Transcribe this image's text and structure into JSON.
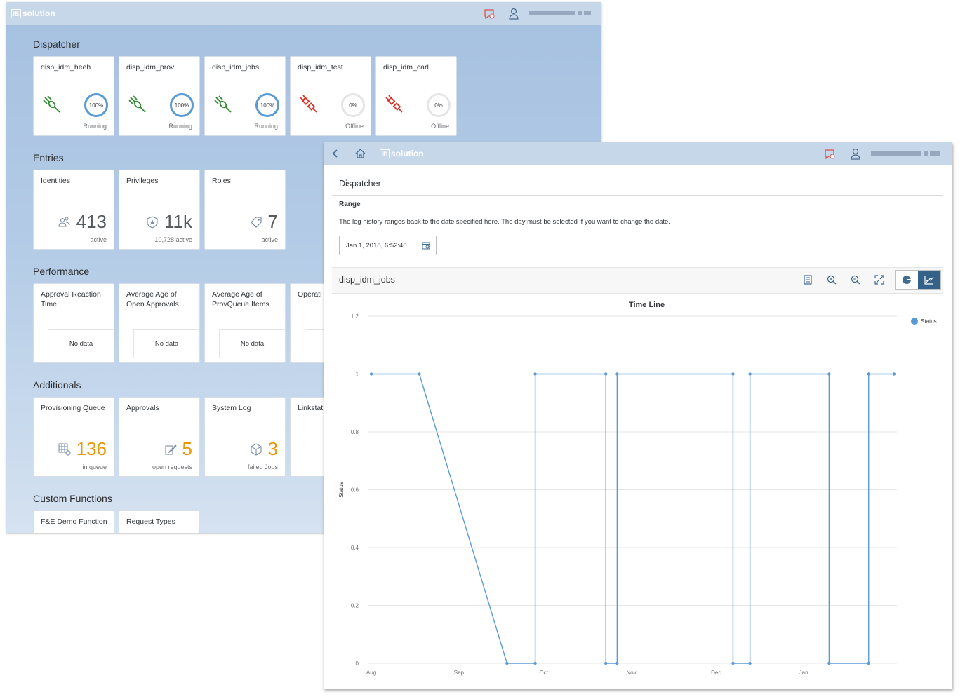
{
  "background_window": {
    "logo_text": "solution",
    "logo_mark": "IB",
    "groups": [
      {
        "title": "Dispatcher"
      },
      {
        "title": "Entries"
      },
      {
        "title": "Performance"
      },
      {
        "title": "Additionals"
      },
      {
        "title": "Custom Functions"
      }
    ],
    "dispatchers": [
      {
        "name": "disp_idm_heeh",
        "percent": "100%",
        "status": "Running",
        "state": "on"
      },
      {
        "name": "disp_idm_prov",
        "percent": "100%",
        "status": "Running",
        "state": "on"
      },
      {
        "name": "disp_idm_jobs",
        "percent": "100%",
        "status": "Running",
        "state": "on"
      },
      {
        "name": "disp_idm_test",
        "percent": "0%",
        "status": "Offline",
        "state": "off"
      },
      {
        "name": "disp_idm_carl",
        "percent": "0%",
        "status": "Offline",
        "state": "off"
      }
    ],
    "entries": [
      {
        "title": "Identities",
        "value": "413",
        "footer": "active",
        "icon": "people-icon"
      },
      {
        "title": "Privileges",
        "value": "11k",
        "footer": "10,728 active",
        "icon": "badge-icon"
      },
      {
        "title": "Roles",
        "value": "7",
        "footer": "active",
        "icon": "tag-icon"
      }
    ],
    "performance": [
      {
        "title": "Approval Reaction Time",
        "nodata": "No data"
      },
      {
        "title": "Average Age of Open Approvals",
        "nodata": "No data"
      },
      {
        "title": "Average Age of ProvQueue Items",
        "nodata": "No data"
      },
      {
        "title": "Operati",
        "nodata": ""
      }
    ],
    "additionals": [
      {
        "title": "Provisioning Queue",
        "value": "136",
        "footer": "in queue",
        "icon": "grid-gear-icon"
      },
      {
        "title": "Approvals",
        "value": "5",
        "footer": "open requests",
        "icon": "edit-doc-icon"
      },
      {
        "title": "System Log",
        "value": "3",
        "footer": "failed Jobs",
        "icon": "cube-icon"
      },
      {
        "title": "Linkstat",
        "value": "",
        "footer": "",
        "icon": "link-icon"
      }
    ],
    "custom_functions": [
      {
        "title": "F&E Demo Function"
      },
      {
        "title": "Request Types"
      }
    ]
  },
  "detail_window": {
    "logo_text": "solution",
    "logo_mark": "IB",
    "page_title": "Dispatcher",
    "range_label": "Range",
    "range_description": "The log history ranges back to the date specified here. The day must be selected if you want to change the date.",
    "date_value": "Jan 1, 2018, 6:52:40 ...",
    "chart_header": "disp_idm_jobs",
    "toolbar_icons": [
      "legend-icon",
      "zoom-in-icon",
      "zoom-out-icon",
      "fullscreen-icon",
      "pie-chart-icon",
      "line-chart-icon"
    ]
  },
  "chart_data": {
    "type": "line",
    "title": "Time Line",
    "ylabel": "Status",
    "xlabel": "",
    "ylim": [
      0,
      1.2
    ],
    "yticks": [
      "0",
      "0.2",
      "0.4",
      "0.6",
      "0.8",
      "1",
      "1.2"
    ],
    "xticks": [
      "Aug",
      "Sep",
      "Oct",
      "Nov",
      "Dec",
      "Jan"
    ],
    "legend_position": "top-right",
    "series": [
      {
        "name": "Status",
        "color": "#5b9bd5",
        "x": [
          "2017-08-01",
          "2017-08-18",
          "2017-09-18",
          "2017-09-28",
          "2017-10-23",
          "2017-10-27",
          "2017-12-07",
          "2017-12-13",
          "2018-01-10",
          "2018-01-24",
          "2018-02-02"
        ],
        "y": [
          1,
          1,
          0,
          0,
          1,
          0,
          1,
          0,
          1,
          0,
          1
        ],
        "step_points": [
          [
            "2017-08-01",
            1
          ],
          [
            "2017-08-18",
            1
          ],
          [
            "2017-09-18",
            0
          ],
          [
            "2017-09-28",
            0
          ],
          [
            "2017-09-28",
            1
          ],
          [
            "2017-10-23",
            1
          ],
          [
            "2017-10-23",
            0
          ],
          [
            "2017-10-27",
            0
          ],
          [
            "2017-10-27",
            1
          ],
          [
            "2017-12-07",
            1
          ],
          [
            "2017-12-07",
            0
          ],
          [
            "2017-12-13",
            0
          ],
          [
            "2017-12-13",
            1
          ],
          [
            "2018-01-10",
            1
          ],
          [
            "2018-01-10",
            0
          ],
          [
            "2018-01-24",
            0
          ],
          [
            "2018-01-24",
            1
          ],
          [
            "2018-02-02",
            1
          ]
        ]
      }
    ]
  }
}
